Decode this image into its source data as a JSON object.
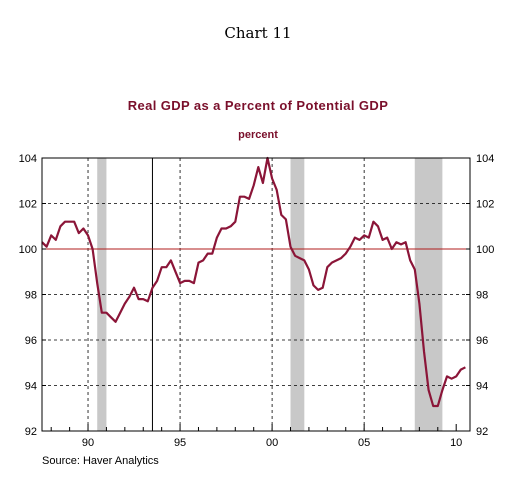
{
  "chart_heading": "Chart 11",
  "source": "Source: Haver Analytics",
  "colors": {
    "series": "#8b1538",
    "reference_line": "#b01c1c",
    "recession": "#c8c8c8",
    "title": "#7a0f2b"
  },
  "chart_data": {
    "type": "line",
    "title": "Real GDP as a Percent of Potential GDP",
    "subtitle": "percent",
    "xlabel": "",
    "ylabel": "",
    "xlim": [
      1987.5,
      2010.75
    ],
    "ylim": [
      92,
      104
    ],
    "yticks": [
      92,
      94,
      96,
      98,
      100,
      102,
      104
    ],
    "xtick_labels": [
      {
        "x": 1990,
        "label": "90"
      },
      {
        "x": 1995,
        "label": "95"
      },
      {
        "x": 2000,
        "label": "00"
      },
      {
        "x": 2005,
        "label": "05"
      },
      {
        "x": 2010,
        "label": "10"
      }
    ],
    "grid": "dashed",
    "reference_line": 100,
    "recessions": [
      [
        1990.5,
        1991.0
      ],
      [
        2001.0,
        2001.75
      ],
      [
        2007.75,
        2009.25
      ]
    ],
    "vertical_marker": 1993.5,
    "series": [
      {
        "name": "",
        "x": [
          1987.5,
          1987.75,
          1988.0,
          1988.25,
          1988.5,
          1988.75,
          1989.0,
          1989.25,
          1989.5,
          1989.75,
          1990.0,
          1990.25,
          1990.5,
          1990.75,
          1991.0,
          1991.25,
          1991.5,
          1991.75,
          1992.0,
          1992.25,
          1992.5,
          1992.75,
          1993.0,
          1993.25,
          1993.5,
          1993.75,
          1994.0,
          1994.25,
          1994.5,
          1994.75,
          1995.0,
          1995.25,
          1995.5,
          1995.75,
          1996.0,
          1996.25,
          1996.5,
          1996.75,
          1997.0,
          1997.25,
          1997.5,
          1997.75,
          1998.0,
          1998.25,
          1998.5,
          1998.75,
          1999.0,
          1999.25,
          1999.5,
          1999.75,
          2000.0,
          2000.25,
          2000.5,
          2000.75,
          2001.0,
          2001.25,
          2001.5,
          2001.75,
          2002.0,
          2002.25,
          2002.5,
          2002.75,
          2003.0,
          2003.25,
          2003.5,
          2003.75,
          2004.0,
          2004.25,
          2004.5,
          2004.75,
          2005.0,
          2005.25,
          2005.5,
          2005.75,
          2006.0,
          2006.25,
          2006.5,
          2006.75,
          2007.0,
          2007.25,
          2007.5,
          2007.75,
          2008.0,
          2008.25,
          2008.5,
          2008.75,
          2009.0,
          2009.25,
          2009.5,
          2009.75,
          2010.0,
          2010.25,
          2010.5
        ],
        "values": [
          100.3,
          100.1,
          100.6,
          100.4,
          101.0,
          101.2,
          101.2,
          101.2,
          100.7,
          100.9,
          100.6,
          100.0,
          98.5,
          97.2,
          97.2,
          97.0,
          96.8,
          97.2,
          97.6,
          97.9,
          98.3,
          97.8,
          97.8,
          97.7,
          98.3,
          98.6,
          99.2,
          99.2,
          99.5,
          99.0,
          98.5,
          98.6,
          98.6,
          98.5,
          99.4,
          99.5,
          99.8,
          99.8,
          100.5,
          100.9,
          100.9,
          101.0,
          101.2,
          102.3,
          102.3,
          102.2,
          102.8,
          103.6,
          102.9,
          104.0,
          103.1,
          102.6,
          101.5,
          101.3,
          100.1,
          99.7,
          99.6,
          99.5,
          99.1,
          98.4,
          98.2,
          98.3,
          99.2,
          99.4,
          99.5,
          99.6,
          99.8,
          100.1,
          100.5,
          100.4,
          100.6,
          100.5,
          101.2,
          101.0,
          100.4,
          100.5,
          100.0,
          100.3,
          100.2,
          100.3,
          99.5,
          99.1,
          97.6,
          95.5,
          93.8,
          93.1,
          93.1,
          93.8,
          94.4,
          94.3,
          94.4,
          94.7,
          94.8
        ]
      }
    ]
  }
}
